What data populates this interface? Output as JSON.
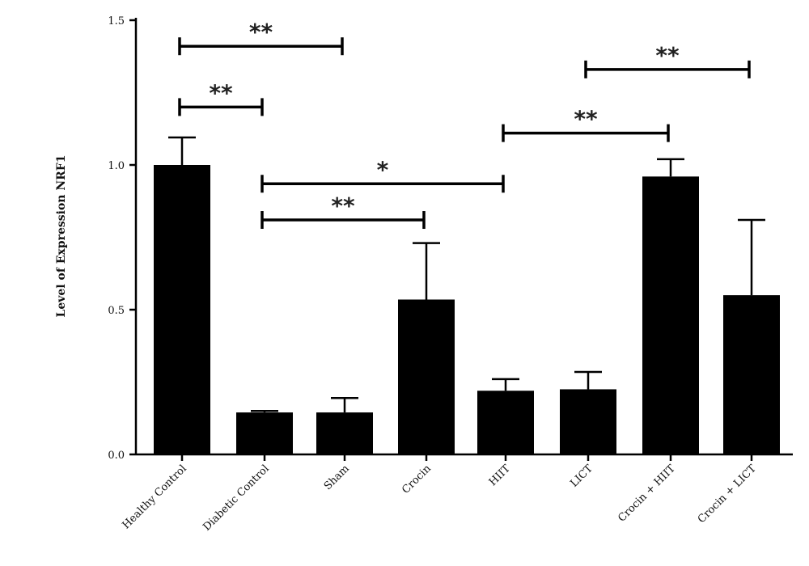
{
  "chart_data": {
    "type": "bar",
    "ylabel": "Level of Expression NRF1",
    "xlabel": "",
    "ylim": [
      0,
      1.5
    ],
    "yticks": [
      "0.0",
      "0.5",
      "1.0",
      "1.5"
    ],
    "yticks_values": [
      0,
      0.5,
      1.0,
      1.5
    ],
    "categories": [
      "Healthy Control",
      "Diabetic Control",
      "Sham",
      "Crocin",
      "HIIT",
      "LICT",
      "Crocin + HIIT",
      "Crocin + LICT"
    ],
    "values": [
      1.0,
      0.145,
      0.145,
      0.535,
      0.22,
      0.225,
      0.96,
      0.55
    ],
    "error": [
      0.095,
      0.005,
      0.05,
      0.195,
      0.04,
      0.06,
      0.06,
      0.26
    ],
    "bar_color": "#000000",
    "grid": false,
    "significance": [
      {
        "from": 0,
        "to": 2,
        "label": "**",
        "y": 1.41
      },
      {
        "from": 0,
        "to": 1,
        "label": "**",
        "y": 1.2
      },
      {
        "from": 1,
        "to": 4,
        "label": "*",
        "y": 0.935
      },
      {
        "from": 1,
        "to": 3,
        "label": "**",
        "y": 0.81
      },
      {
        "from": 4,
        "to": 6,
        "label": "**",
        "y": 1.11
      },
      {
        "from": 5,
        "to": 7,
        "label": "**",
        "y": 1.33
      }
    ]
  }
}
